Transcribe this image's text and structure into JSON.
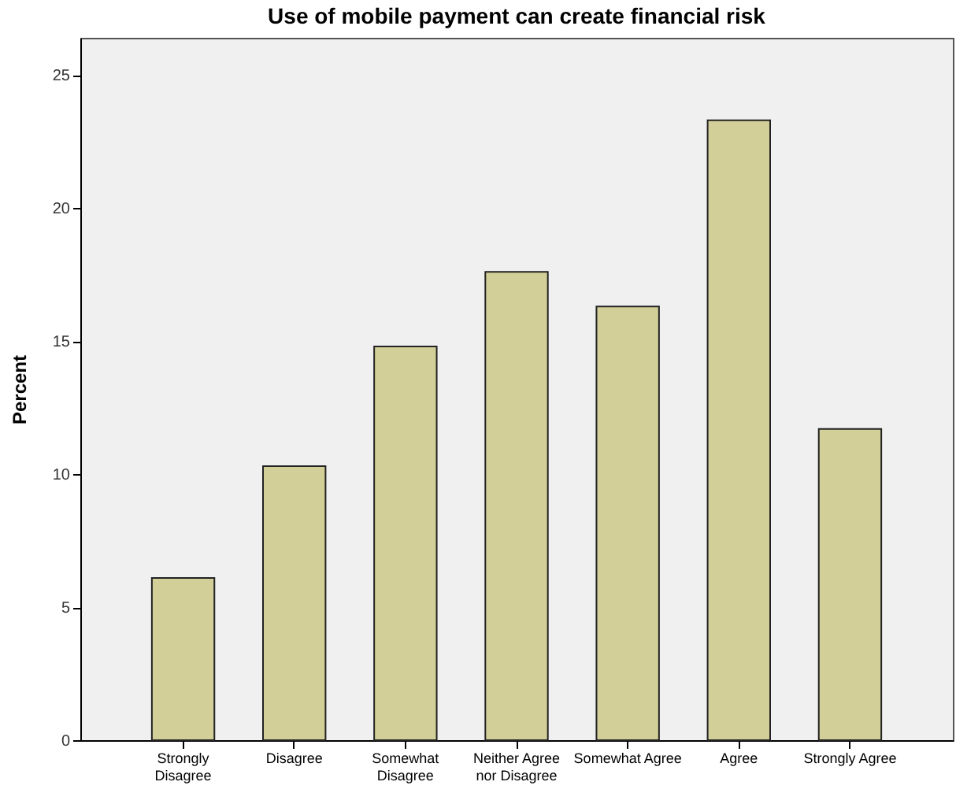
{
  "chart_data": {
    "type": "bar",
    "title": "Use of mobile payment can create financial risk",
    "ylabel": "Percent",
    "categories": [
      "Strongly Disagree",
      "Disagree",
      "Somewhat Disagree",
      "Neither Agree nor Disagree",
      "Somewhat Agree",
      "Agree",
      "Strongly Agree"
    ],
    "values": [
      6.1,
      10.3,
      14.8,
      17.6,
      16.3,
      23.3,
      11.7
    ],
    "color": "#d3cf98",
    "ylim": [
      0,
      26.4
    ],
    "yticks": [
      0,
      5,
      10,
      15,
      20,
      25
    ],
    "grid": false
  }
}
